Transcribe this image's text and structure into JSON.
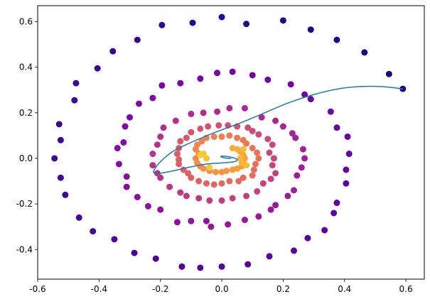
{
  "chart_data": {
    "type": "scatter",
    "title": "",
    "xlabel": "",
    "ylabel": "",
    "xlim": [
      -0.6,
      0.66
    ],
    "ylim": [
      -0.53,
      0.67
    ],
    "grid": false,
    "x_ticks": [
      "-0.6",
      "-0.4",
      "-0.2",
      "0.0",
      "0.2",
      "0.4",
      "0.6"
    ],
    "y_ticks": [
      "-0.4",
      "-0.2",
      "0.0",
      "0.2",
      "0.4",
      "0.6"
    ],
    "x_tick_values": [
      -0.6,
      -0.4,
      -0.2,
      0.0,
      0.2,
      0.4,
      0.6
    ],
    "y_tick_values": [
      -0.4,
      -0.2,
      0.0,
      0.2,
      0.4,
      0.6
    ],
    "colormap": "plasma",
    "line_color": "#1f77b4",
    "scatter_series": {
      "name": "",
      "points": [
        [
          0.59,
          0.305,
          0.02
        ],
        [
          0.545,
          0.37,
          0.02
        ],
        [
          0.465,
          0.465,
          0.03
        ],
        [
          0.375,
          0.52,
          0.04
        ],
        [
          0.29,
          0.565,
          0.05
        ],
        [
          0.2,
          0.605,
          0.06
        ],
        [
          0.08,
          0.59,
          0.07
        ],
        [
          0.0,
          0.62,
          0.07
        ],
        [
          -0.095,
          0.595,
          0.08
        ],
        [
          -0.195,
          0.585,
          0.09
        ],
        [
          -0.275,
          0.52,
          0.09
        ],
        [
          -0.355,
          0.47,
          0.1
        ],
        [
          -0.405,
          0.395,
          0.11
        ],
        [
          -0.475,
          0.33,
          0.11
        ],
        [
          -0.48,
          0.255,
          0.12
        ],
        [
          -0.53,
          0.15,
          0.12
        ],
        [
          -0.525,
          0.08,
          0.13
        ],
        [
          -0.545,
          0.0,
          0.13
        ],
        [
          -0.525,
          -0.085,
          0.14
        ],
        [
          -0.51,
          -0.16,
          0.14
        ],
        [
          -0.465,
          -0.26,
          0.15
        ],
        [
          -0.42,
          -0.32,
          0.15
        ],
        [
          -0.35,
          -0.355,
          0.16
        ],
        [
          -0.285,
          -0.415,
          0.16
        ],
        [
          -0.215,
          -0.44,
          0.17
        ],
        [
          -0.13,
          -0.475,
          0.17
        ],
        [
          -0.07,
          -0.48,
          0.18
        ],
        [
          0.0,
          -0.475,
          0.18
        ],
        [
          0.085,
          -0.465,
          0.19
        ],
        [
          0.155,
          -0.43,
          0.19
        ],
        [
          0.235,
          -0.405,
          0.2
        ],
        [
          0.28,
          -0.35,
          0.2
        ],
        [
          0.335,
          -0.315,
          0.21
        ],
        [
          0.365,
          -0.24,
          0.21
        ],
        [
          0.375,
          -0.195,
          0.22
        ],
        [
          0.405,
          -0.11,
          0.22
        ],
        [
          0.405,
          -0.05,
          0.23
        ],
        [
          0.415,
          0.02,
          0.23
        ],
        [
          0.41,
          0.095,
          0.24
        ],
        [
          0.375,
          0.135,
          0.24
        ],
        [
          0.355,
          0.205,
          0.25
        ],
        [
          0.29,
          0.26,
          0.25
        ],
        [
          0.27,
          0.28,
          0.26
        ],
        [
          0.225,
          0.325,
          0.26
        ],
        [
          0.15,
          0.345,
          0.27
        ],
        [
          0.1,
          0.365,
          0.27
        ],
        [
          0.035,
          0.38,
          0.28
        ],
        [
          -0.015,
          0.375,
          0.28
        ],
        [
          -0.07,
          0.35,
          0.29
        ],
        [
          -0.135,
          0.33,
          0.29
        ],
        [
          -0.195,
          0.32,
          0.3
        ],
        [
          -0.225,
          0.265,
          0.3
        ],
        [
          -0.27,
          0.24,
          0.31
        ],
        [
          -0.3,
          0.18,
          0.31
        ],
        [
          -0.315,
          0.14,
          0.32
        ],
        [
          -0.32,
          0.07,
          0.32
        ],
        [
          -0.34,
          0.045,
          0.33
        ],
        [
          -0.335,
          -0.025,
          0.33
        ],
        [
          -0.31,
          -0.08,
          0.34
        ],
        [
          -0.31,
          -0.125,
          0.34
        ],
        [
          -0.275,
          -0.17,
          0.35
        ],
        [
          -0.24,
          -0.21,
          0.35
        ],
        [
          -0.2,
          -0.225,
          0.36
        ],
        [
          -0.145,
          -0.28,
          0.36
        ],
        [
          -0.1,
          -0.275,
          0.37
        ],
        [
          -0.05,
          -0.275,
          0.37
        ],
        [
          -0.035,
          -0.3,
          0.38
        ],
        [
          0.02,
          -0.29,
          0.38
        ],
        [
          0.075,
          -0.27,
          0.39
        ],
        [
          0.12,
          -0.255,
          0.39
        ],
        [
          0.16,
          -0.225,
          0.4
        ],
        [
          0.175,
          -0.205,
          0.4
        ],
        [
          0.215,
          -0.165,
          0.41
        ],
        [
          0.235,
          -0.14,
          0.41
        ],
        [
          0.245,
          -0.075,
          0.42
        ],
        [
          0.26,
          -0.04,
          0.42
        ],
        [
          0.27,
          0.0,
          0.43
        ],
        [
          0.265,
          0.04,
          0.43
        ],
        [
          0.24,
          0.09,
          0.44
        ],
        [
          0.23,
          0.11,
          0.44
        ],
        [
          0.2,
          0.14,
          0.45
        ],
        [
          0.175,
          0.165,
          0.45
        ],
        [
          0.13,
          0.18,
          0.46
        ],
        [
          0.075,
          0.22,
          0.46
        ],
        [
          0.025,
          0.22,
          0.47
        ],
        [
          -0.015,
          0.205,
          0.47
        ],
        [
          -0.06,
          0.2,
          0.48
        ],
        [
          -0.1,
          0.195,
          0.48
        ],
        [
          -0.15,
          0.165,
          0.49
        ],
        [
          -0.19,
          0.135,
          0.49
        ],
        [
          -0.2,
          0.095,
          0.5
        ],
        [
          -0.21,
          0.06,
          0.5
        ],
        [
          -0.225,
          0.02,
          0.51
        ],
        [
          -0.225,
          -0.03,
          0.51
        ],
        [
          -0.21,
          -0.065,
          0.52
        ],
        [
          -0.2,
          -0.085,
          0.52
        ],
        [
          -0.17,
          -0.125,
          0.53
        ],
        [
          -0.135,
          -0.15,
          0.53
        ],
        [
          -0.115,
          -0.165,
          0.54
        ],
        [
          -0.075,
          -0.175,
          0.54
        ],
        [
          -0.04,
          -0.185,
          0.55
        ],
        [
          0.0,
          -0.185,
          0.55
        ],
        [
          0.035,
          -0.175,
          0.56
        ],
        [
          0.08,
          -0.165,
          0.56
        ],
        [
          0.115,
          -0.145,
          0.57
        ],
        [
          0.135,
          -0.11,
          0.57
        ],
        [
          0.16,
          -0.09,
          0.58
        ],
        [
          0.175,
          -0.065,
          0.58
        ],
        [
          0.165,
          -0.03,
          0.59
        ],
        [
          0.17,
          0.0,
          0.59
        ],
        [
          0.155,
          0.025,
          0.6
        ],
        [
          0.165,
          0.06,
          0.6
        ],
        [
          0.15,
          0.085,
          0.61
        ],
        [
          0.12,
          0.105,
          0.61
        ],
        [
          0.1,
          0.12,
          0.62
        ],
        [
          0.085,
          0.135,
          0.62
        ],
        [
          0.05,
          0.14,
          0.63
        ],
        [
          0.02,
          0.145,
          0.63
        ],
        [
          -0.01,
          0.145,
          0.64
        ],
        [
          -0.045,
          0.14,
          0.64
        ],
        [
          -0.07,
          0.13,
          0.65
        ],
        [
          -0.1,
          0.115,
          0.65
        ],
        [
          -0.115,
          0.09,
          0.66
        ],
        [
          -0.135,
          0.075,
          0.66
        ],
        [
          -0.14,
          0.045,
          0.67
        ],
        [
          -0.145,
          0.02,
          0.67
        ],
        [
          -0.14,
          -0.005,
          0.68
        ],
        [
          -0.14,
          -0.025,
          0.68
        ],
        [
          -0.125,
          -0.05,
          0.69
        ],
        [
          -0.11,
          -0.065,
          0.69
        ],
        [
          -0.1,
          -0.085,
          0.7
        ],
        [
          -0.075,
          -0.1,
          0.7
        ],
        [
          -0.05,
          -0.11,
          0.71
        ],
        [
          -0.025,
          -0.115,
          0.71
        ],
        [
          0.0,
          -0.11,
          0.72
        ],
        [
          0.025,
          -0.1,
          0.72
        ],
        [
          0.055,
          -0.1,
          0.73
        ],
        [
          0.07,
          -0.085,
          0.73
        ],
        [
          0.1,
          -0.075,
          0.74
        ],
        [
          0.105,
          -0.05,
          0.74
        ],
        [
          0.11,
          -0.025,
          0.75
        ],
        [
          0.12,
          0.0,
          0.75
        ],
        [
          0.115,
          0.025,
          0.76
        ],
        [
          0.1,
          0.045,
          0.76
        ],
        [
          0.08,
          0.065,
          0.77
        ],
        [
          0.07,
          0.08,
          0.77
        ],
        [
          0.05,
          0.09,
          0.78
        ],
        [
          0.025,
          0.1,
          0.78
        ],
        [
          0.0,
          0.095,
          0.79
        ],
        [
          -0.025,
          0.095,
          0.79
        ],
        [
          -0.05,
          0.09,
          0.8
        ],
        [
          -0.065,
          0.075,
          0.8
        ],
        [
          -0.08,
          0.06,
          0.81
        ],
        [
          -0.085,
          0.04,
          0.81
        ],
        [
          -0.075,
          0.02,
          0.82
        ],
        [
          -0.085,
          0.0,
          0.82
        ],
        [
          -0.08,
          -0.02,
          0.83
        ],
        [
          -0.07,
          -0.035,
          0.83
        ],
        [
          -0.06,
          -0.045,
          0.84
        ],
        [
          -0.04,
          -0.055,
          0.84
        ],
        [
          -0.02,
          -0.06,
          0.85
        ],
        [
          0.0,
          -0.06,
          0.85
        ],
        [
          0.015,
          -0.055,
          0.86
        ],
        [
          0.035,
          -0.05,
          0.86
        ],
        [
          0.05,
          -0.045,
          0.87
        ],
        [
          0.065,
          -0.035,
          0.87
        ],
        [
          0.07,
          -0.02,
          0.88
        ],
        [
          0.075,
          0.0,
          0.88
        ],
        [
          0.07,
          0.015,
          0.89
        ],
        [
          0.06,
          0.03,
          0.89
        ],
        [
          0.05,
          0.04,
          0.9
        ],
        [
          0.035,
          0.045,
          0.9
        ],
        [
          0.065,
          -0.02,
          0.91
        ],
        [
          0.06,
          0.0,
          0.91
        ],
        [
          0.07,
          0.04,
          0.92
        ],
        [
          0.08,
          -0.03,
          0.92
        ],
        [
          -0.05,
          0.0,
          0.93
        ],
        [
          -0.06,
          0.02,
          0.93
        ],
        [
          -0.07,
          0.015,
          0.94
        ],
        [
          -0.04,
          -0.04,
          0.94
        ]
      ]
    },
    "line_series": {
      "name": "",
      "x": [
        0.59,
        0.52,
        0.45,
        0.38,
        0.3,
        0.22,
        0.14,
        0.06,
        -0.02,
        -0.1,
        -0.16,
        -0.2,
        -0.22,
        -0.22,
        -0.2,
        -0.16,
        -0.11,
        -0.05,
        0.0,
        0.04,
        0.05,
        0.03,
        0.0,
        0.0,
        0.02,
        0.03
      ],
      "y": [
        0.305,
        0.315,
        0.315,
        0.305,
        0.28,
        0.245,
        0.2,
        0.155,
        0.115,
        0.07,
        0.03,
        -0.015,
        -0.05,
        -0.065,
        -0.065,
        -0.055,
        -0.04,
        -0.025,
        -0.02,
        -0.015,
        -0.005,
        0.005,
        0.01,
        0.005,
        0.0,
        0.0
      ]
    }
  }
}
